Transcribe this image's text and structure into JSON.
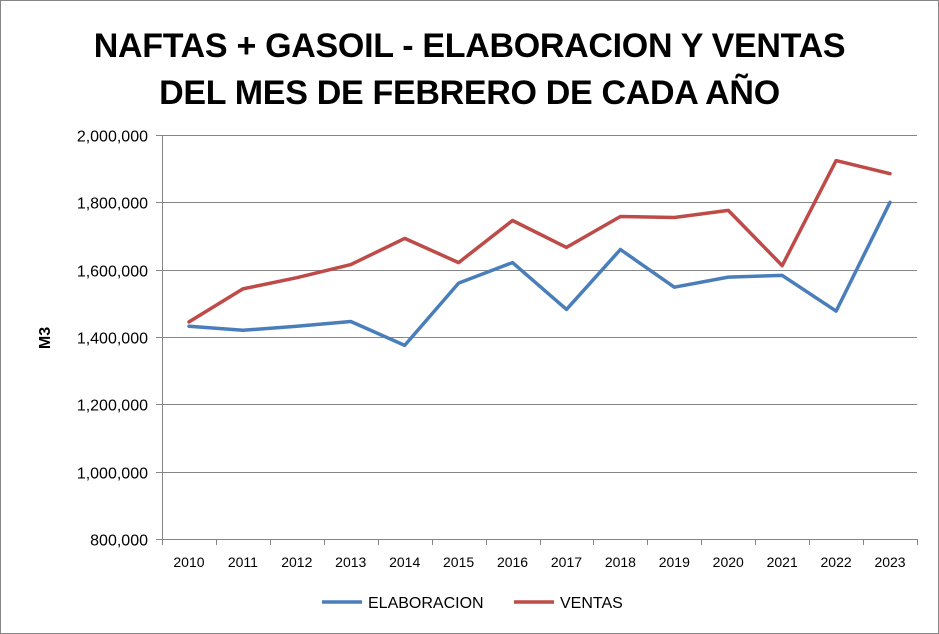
{
  "chart_data": {
    "type": "line",
    "title_line1": "NAFTAS + GASOIL - ELABORACION Y VENTAS",
    "title_line2": "DEL MES DE FEBRERO DE CADA AÑO",
    "xlabel": "",
    "ylabel": "M3",
    "ylim": [
      800000,
      2000000
    ],
    "y_ticks": [
      800000,
      1000000,
      1200000,
      1400000,
      1600000,
      1800000,
      2000000
    ],
    "y_tick_labels": [
      "800,000",
      "1,000,000",
      "1,200,000",
      "1,400,000",
      "1,600,000",
      "1,800,000",
      "2,000,000"
    ],
    "categories": [
      "2010",
      "2011",
      "2012",
      "2013",
      "2014",
      "2015",
      "2016",
      "2017",
      "2018",
      "2019",
      "2020",
      "2021",
      "2022",
      "2023"
    ],
    "grid": "horizontal",
    "legend_position": "bottom",
    "series": [
      {
        "name": "ELABORACION",
        "color": "#4A7EBB",
        "values": [
          1432000,
          1420000,
          1432000,
          1446000,
          1375000,
          1560000,
          1621000,
          1482000,
          1660000,
          1548000,
          1578000,
          1583000,
          1477000,
          1800000
        ]
      },
      {
        "name": "VENTAS",
        "color": "#BE4B48",
        "values": [
          1445000,
          1543000,
          1576000,
          1615000,
          1693000,
          1621000,
          1746000,
          1666000,
          1758000,
          1755000,
          1776000,
          1612000,
          1924000,
          1885000
        ]
      }
    ]
  }
}
